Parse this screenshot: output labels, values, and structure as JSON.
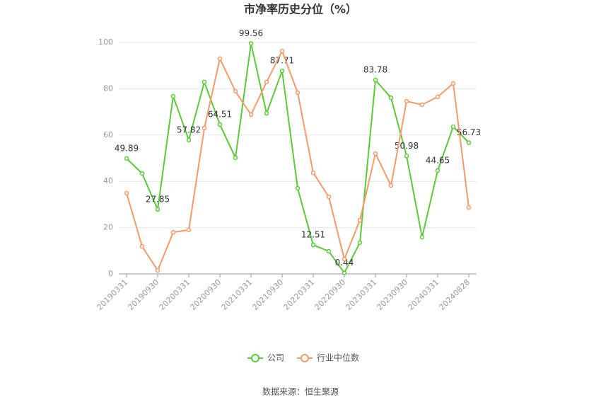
{
  "chart_data": {
    "type": "line",
    "title": "市净率历史分位（%）",
    "source": "数据来源：恒生聚源",
    "categories": [
      "20190331",
      null,
      "20190930",
      null,
      "20200331",
      null,
      "20200930",
      null,
      "20210331",
      null,
      "20210930",
      null,
      "20220331",
      null,
      "20220930",
      null,
      "20230331",
      null,
      "20230930",
      null,
      "20240331",
      null,
      "20240828"
    ],
    "series": [
      {
        "name": "公司",
        "color": "#5cc83a",
        "values": [
          49.89,
          43.4,
          27.85,
          76.8,
          57.82,
          82.9,
          64.51,
          50.2,
          99.56,
          69.4,
          87.71,
          37.0,
          12.51,
          9.8,
          0.44,
          13.5,
          83.78,
          76.1,
          50.98,
          15.9,
          44.65,
          63.6,
          56.73
        ],
        "value_labels": [
          "49.89",
          null,
          "27.85",
          null,
          "57.82",
          null,
          "64.51",
          null,
          "99.56",
          null,
          "87.71",
          null,
          "12.51",
          null,
          "0.44",
          null,
          "83.78",
          null,
          "50.98",
          null,
          "44.65",
          null,
          "56.73"
        ]
      },
      {
        "name": "行业中位数",
        "color": "#f39a6b",
        "values": [
          34.9,
          11.9,
          1.5,
          18.0,
          19.0,
          63.0,
          93.0,
          78.9,
          68.8,
          82.9,
          96.3,
          78.3,
          43.7,
          33.3,
          6.4,
          23.2,
          52.0,
          38.2,
          74.6,
          73.1,
          76.5,
          82.3,
          28.7
        ]
      }
    ],
    "ylim": [
      0,
      100
    ],
    "yticks": [
      0,
      20,
      40,
      60,
      80,
      100
    ],
    "grid": true
  }
}
